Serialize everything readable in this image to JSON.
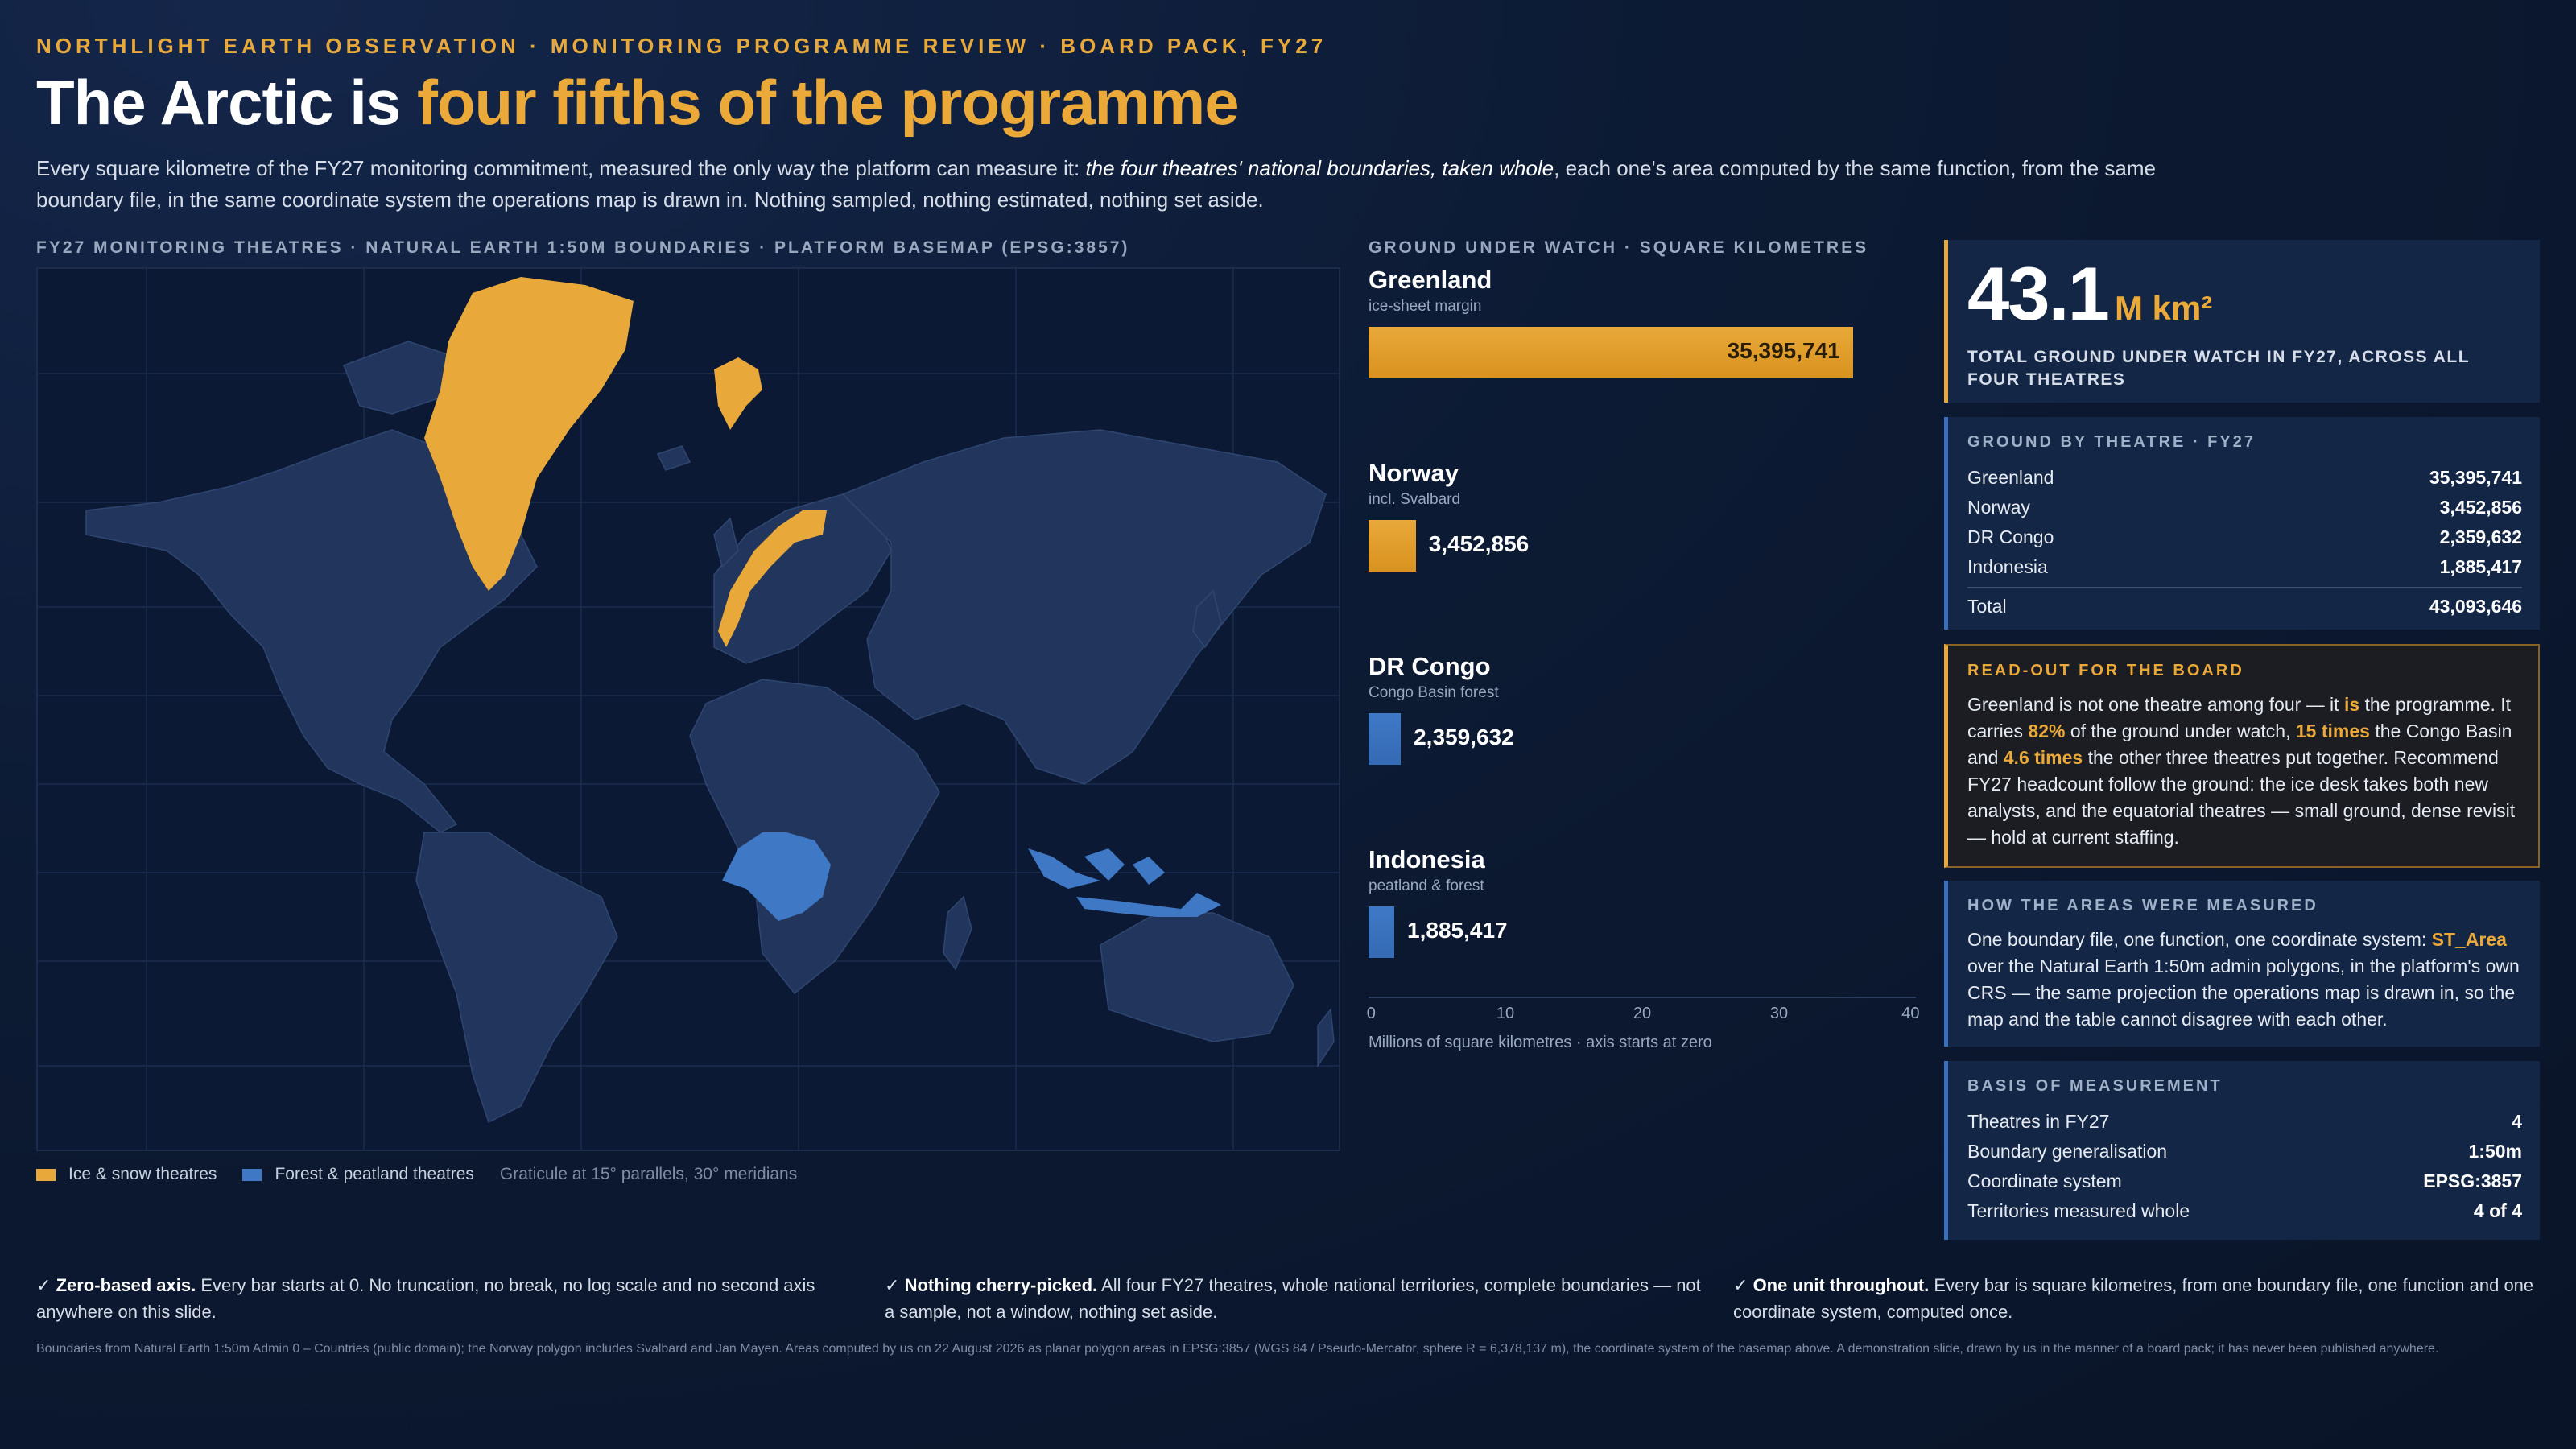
{
  "header": {
    "kicker": "NORTHLIGHT EARTH OBSERVATION  ·  MONITORING PROGRAMME REVIEW  ·  BOARD PACK, FY27",
    "title_lead": "The Arctic is ",
    "title_highlight": "four fifths of the programme",
    "lede_1": "Every square kilometre of the FY27 monitoring commitment, measured the only way the platform can measure it: ",
    "lede_em": "the four theatres' national boundaries, taken whole",
    "lede_2": ", each one's area computed by the same function, from the same boundary file, in the same coordinate system the operations map is drawn in. Nothing sampled, nothing estimated, nothing set aside."
  },
  "map": {
    "label": "FY27 MONITORING THEATRES · NATURAL EARTH 1:50M BOUNDARIES · PLATFORM BASEMAP (EPSG:3857)",
    "legend_ice": "Ice & snow theatres",
    "legend_forest": "Forest & peatland theatres",
    "legend_graticule": "Graticule at 15° parallels, 30° meridians",
    "colors": {
      "ice": "#e8a93a",
      "forest": "#3f79c6",
      "land": "#22365d",
      "ocean": "#0c1934"
    }
  },
  "chart_data": {
    "type": "bar",
    "title": "GROUND UNDER WATCH · SQUARE KILOMETRES",
    "orientation": "horizontal",
    "categories": [
      "Greenland",
      "Norway",
      "DR Congo",
      "Indonesia"
    ],
    "subtitles": [
      "ice-sheet margin",
      "incl. Svalbard",
      "Congo Basin forest",
      "peatland & forest"
    ],
    "values": [
      35395741,
      3452856,
      2359632,
      1885417
    ],
    "value_labels": [
      "35,395,741",
      "3,452,856",
      "2,359,632",
      "1,885,417"
    ],
    "colors": [
      "#e8a93a",
      "#e8a93a",
      "#3f79c6",
      "#3f79c6"
    ],
    "xlim": [
      0,
      40
    ],
    "ticks": [
      "0",
      "10",
      "20",
      "30",
      "40"
    ],
    "xlabel": "Millions of square kilometres · axis starts at zero",
    "grid": false
  },
  "total_card": {
    "value": "43.1",
    "unit": "M km²",
    "caption": "TOTAL GROUND UNDER WATCH IN FY27, ACROSS ALL FOUR THEATRES"
  },
  "by_theatre": {
    "title": "GROUND BY THEATRE · FY27",
    "rows": [
      {
        "label": "Greenland",
        "value": "35,395,741"
      },
      {
        "label": "Norway",
        "value": "3,452,856"
      },
      {
        "label": "DR Congo",
        "value": "2,359,632"
      },
      {
        "label": "Indonesia",
        "value": "1,885,417"
      }
    ],
    "total_label": "Total",
    "total_value": "43,093,646"
  },
  "readout": {
    "title": "READ-OUT FOR THE BOARD",
    "p1": "Greenland is not one theatre among four — it ",
    "is": "is",
    "p2": " the programme. It carries ",
    "pct": "82%",
    "p3": " of the ground under watch, ",
    "times1": "15 times",
    "p4": " the Congo Basin and ",
    "times2": "4.6 times",
    "p5": " the other three theatres put together. Recommend FY27 headcount follow the ground: the ice desk takes both new analysts, and the equatorial theatres — small ground, dense revisit — hold at current staffing."
  },
  "measured": {
    "title": "HOW THE AREAS WERE MEASURED",
    "p1": "One boundary file, one function, one coordinate system: ",
    "fn": "ST_Area",
    "p2": " over the Natural Earth 1:50m admin polygons, in the platform's own CRS — the same projection the operations map is drawn in, so the map and the table cannot disagree with each other."
  },
  "basis": {
    "title": "BASIS OF MEASUREMENT",
    "rows": [
      {
        "label": "Theatres in FY27",
        "value": "4"
      },
      {
        "label": "Boundary generalisation",
        "value": "1:50m"
      },
      {
        "label": "Coordinate system",
        "value": "EPSG:3857"
      },
      {
        "label": "Territories measured whole",
        "value": "4 of 4"
      }
    ]
  },
  "footer": {
    "check": "✓",
    "c1_bold": "Zero-based axis.",
    "c1_text": " Every bar starts at 0. No truncation, no break, no log scale and no second axis anywhere on this slide.",
    "c2_bold": "Nothing cherry-picked.",
    "c2_text": " All four FY27 theatres, whole national territories, complete boundaries — not a sample, not a window, nothing set aside.",
    "c3_bold": "One unit throughout.",
    "c3_text": " Every bar is square kilometres, from one boundary file, one function and one coordinate system, computed once.",
    "fine": "Boundaries from Natural Earth 1:50m Admin 0 – Countries (public domain); the Norway polygon includes Svalbard and Jan Mayen. Areas computed by us on 22 August 2026 as planar polygon areas in EPSG:3857 (WGS 84 / Pseudo-Mercator, sphere R = 6,378,137 m), the coordinate system of the basemap above. A demonstration slide, drawn by us in the manner of a board pack; it has never been published anywhere."
  }
}
